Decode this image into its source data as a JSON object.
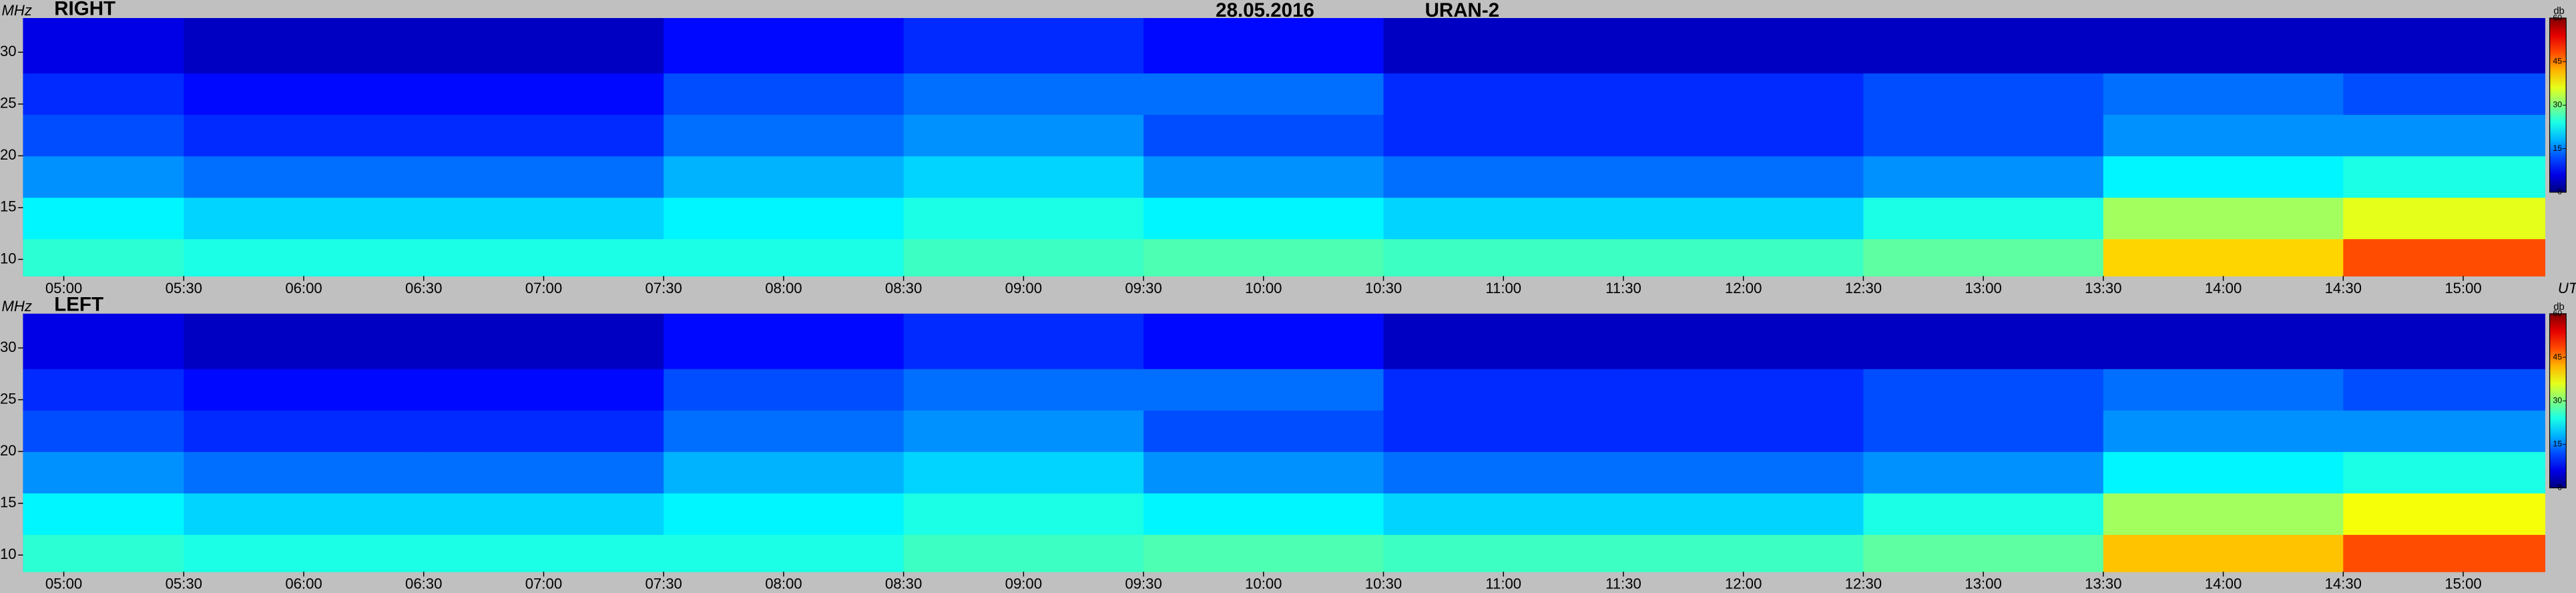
{
  "chart_data": {
    "type": "heatmap",
    "title": "28.05.2016",
    "subtitle": "URAN-2",
    "ylabel": "MHz",
    "xlabel": "UT",
    "zlabel": "db",
    "xlim": [
      4.83,
      15.34
    ],
    "ylim": [
      8.4,
      33.3
    ],
    "zlim": [
      0,
      60
    ],
    "xticks": [
      {
        "value": 5,
        "label": "05:00"
      },
      {
        "value": 5.5,
        "label": "05:30"
      },
      {
        "value": 6,
        "label": "06:00"
      },
      {
        "value": 6.5,
        "label": "06:30"
      },
      {
        "value": 7,
        "label": "07:00"
      },
      {
        "value": 7.5,
        "label": "07:30"
      },
      {
        "value": 8,
        "label": "08:00"
      },
      {
        "value": 8.5,
        "label": "08:30"
      },
      {
        "value": 9,
        "label": "09:00"
      },
      {
        "value": 9.5,
        "label": "09:30"
      },
      {
        "value": 10,
        "label": "10:00"
      },
      {
        "value": 10.5,
        "label": "10:30"
      },
      {
        "value": 11,
        "label": "11:00"
      },
      {
        "value": 11.5,
        "label": "11:30"
      },
      {
        "value": 12,
        "label": "12:00"
      },
      {
        "value": 12.5,
        "label": "12:30"
      },
      {
        "value": 13,
        "label": "13:00"
      },
      {
        "value": 13.5,
        "label": "13:30"
      },
      {
        "value": 14,
        "label": "14:00"
      },
      {
        "value": 14.5,
        "label": "14:30"
      },
      {
        "value": 15,
        "label": "15:00"
      }
    ],
    "yticks": [
      10,
      15,
      20,
      25,
      30
    ],
    "zticks": [
      0,
      15,
      30,
      45,
      60
    ],
    "x_bins": [
      4.83,
      5.5,
      6.5,
      7.5,
      8.5,
      9.5,
      10.5,
      11.5,
      12.5,
      13.5,
      14.5,
      15.34
    ],
    "y_bins": [
      8.4,
      12,
      16,
      20,
      24,
      28,
      33.3
    ],
    "panels": [
      {
        "label": "RIGHT",
        "z": [
          [
            25,
            24,
            24,
            24,
            26,
            27,
            26,
            26,
            28,
            40,
            48
          ],
          [
            22,
            20,
            20,
            22,
            24,
            22,
            20,
            20,
            24,
            32,
            36
          ],
          [
            16,
            14,
            14,
            18,
            20,
            16,
            14,
            14,
            16,
            22,
            24
          ],
          [
            12,
            10,
            10,
            14,
            16,
            12,
            10,
            10,
            12,
            16,
            16
          ],
          [
            10,
            8,
            8,
            12,
            14,
            14,
            10,
            10,
            12,
            14,
            12
          ],
          [
            6,
            4,
            4,
            8,
            10,
            8,
            4,
            4,
            4,
            4,
            4
          ]
        ]
      },
      {
        "label": "LEFT",
        "z": [
          [
            25,
            24,
            24,
            24,
            26,
            27,
            26,
            26,
            28,
            41,
            48
          ],
          [
            22,
            20,
            20,
            22,
            24,
            22,
            20,
            20,
            24,
            32,
            37
          ],
          [
            16,
            14,
            14,
            18,
            20,
            16,
            14,
            14,
            16,
            22,
            24
          ],
          [
            12,
            10,
            10,
            14,
            16,
            12,
            10,
            10,
            12,
            16,
            16
          ],
          [
            10,
            8,
            8,
            12,
            14,
            14,
            10,
            10,
            12,
            14,
            12
          ],
          [
            6,
            4,
            4,
            8,
            10,
            8,
            4,
            4,
            4,
            4,
            4
          ]
        ]
      }
    ]
  }
}
